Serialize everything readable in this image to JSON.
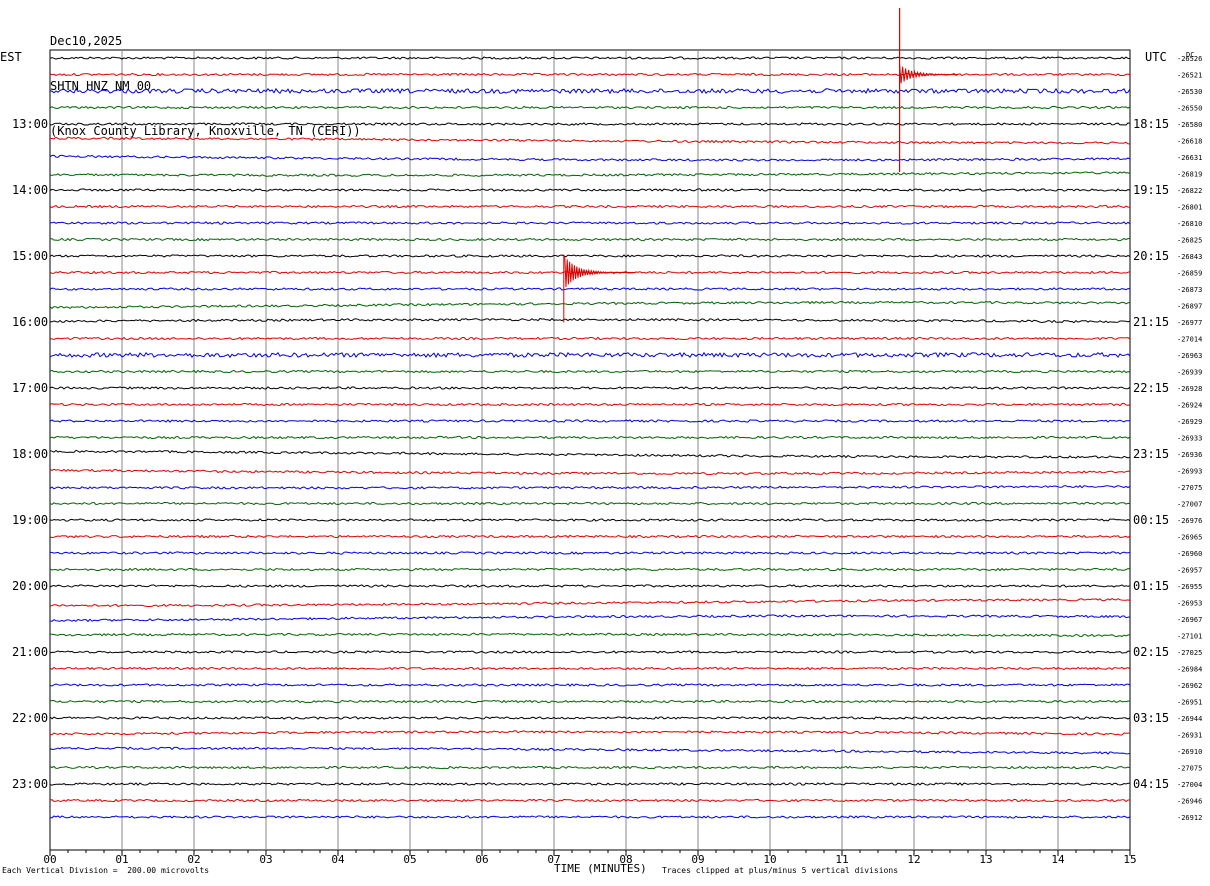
{
  "header": {
    "date": "Dec10,2025",
    "station": "SHTN HNZ NM 00",
    "location": "(Knox County Library, Knoxville, TN (CERI))"
  },
  "left_axis_label": "EST",
  "right_axis_label": "UTC",
  "dc_label": "DC",
  "footer": {
    "scale_note": "Each Vertical Division =  200.00 microvolts",
    "clip_note": "Traces clipped at plus/minus 5 vertical divisions",
    "xlabel": "TIME (MINUTES)"
  },
  "colors": {
    "cycle": [
      "#000000",
      "#dd0000",
      "#0000dd",
      "#006400"
    ],
    "grid": "#888888"
  },
  "chart_data": {
    "type": "helicorder",
    "xlabel": "TIME (MINUTES)",
    "xlim": [
      0,
      15
    ],
    "x_ticks": [
      "00",
      "01",
      "02",
      "03",
      "04",
      "05",
      "06",
      "07",
      "08",
      "09",
      "10",
      "11",
      "12",
      "13",
      "14",
      "15"
    ],
    "left_hour_labels": [
      "13:00",
      "14:00",
      "15:00",
      "16:00",
      "17:00",
      "18:00",
      "19:00",
      "20:00",
      "21:00",
      "22:00",
      "23:00"
    ],
    "right_hour_labels": [
      "18:15",
      "19:15",
      "20:15",
      "21:15",
      "22:15",
      "23:15",
      "00:15",
      "01:15",
      "02:15",
      "03:15",
      "04:15"
    ],
    "line_minutes": 15,
    "first_line_start_est": "12:00",
    "dc_offsets": [
      -26526,
      -26521,
      -26530,
      -26550,
      -26580,
      -26618,
      -26631,
      -26819,
      -26822,
      -26801,
      -26810,
      -26825,
      -26843,
      -26859,
      -26873,
      -26897,
      -26977,
      -27014,
      -26963,
      -26939,
      -26928,
      -26924,
      -26929,
      -26933,
      -26936,
      -26993,
      -27075,
      -27007,
      -26976,
      -26965,
      -26960,
      -26957,
      -26955,
      -26953,
      -26967,
      -27101,
      -27025,
      -26984,
      -26962,
      -26951,
      -26944,
      -26931,
      -26910,
      -27075,
      -27004,
      -26946,
      -26912
    ],
    "events": [
      {
        "line": 1,
        "minute": 11.8,
        "amplitude": "clipped"
      },
      {
        "line": 13,
        "minute": 7.15,
        "amplitude": "large"
      }
    ],
    "grid": true
  }
}
